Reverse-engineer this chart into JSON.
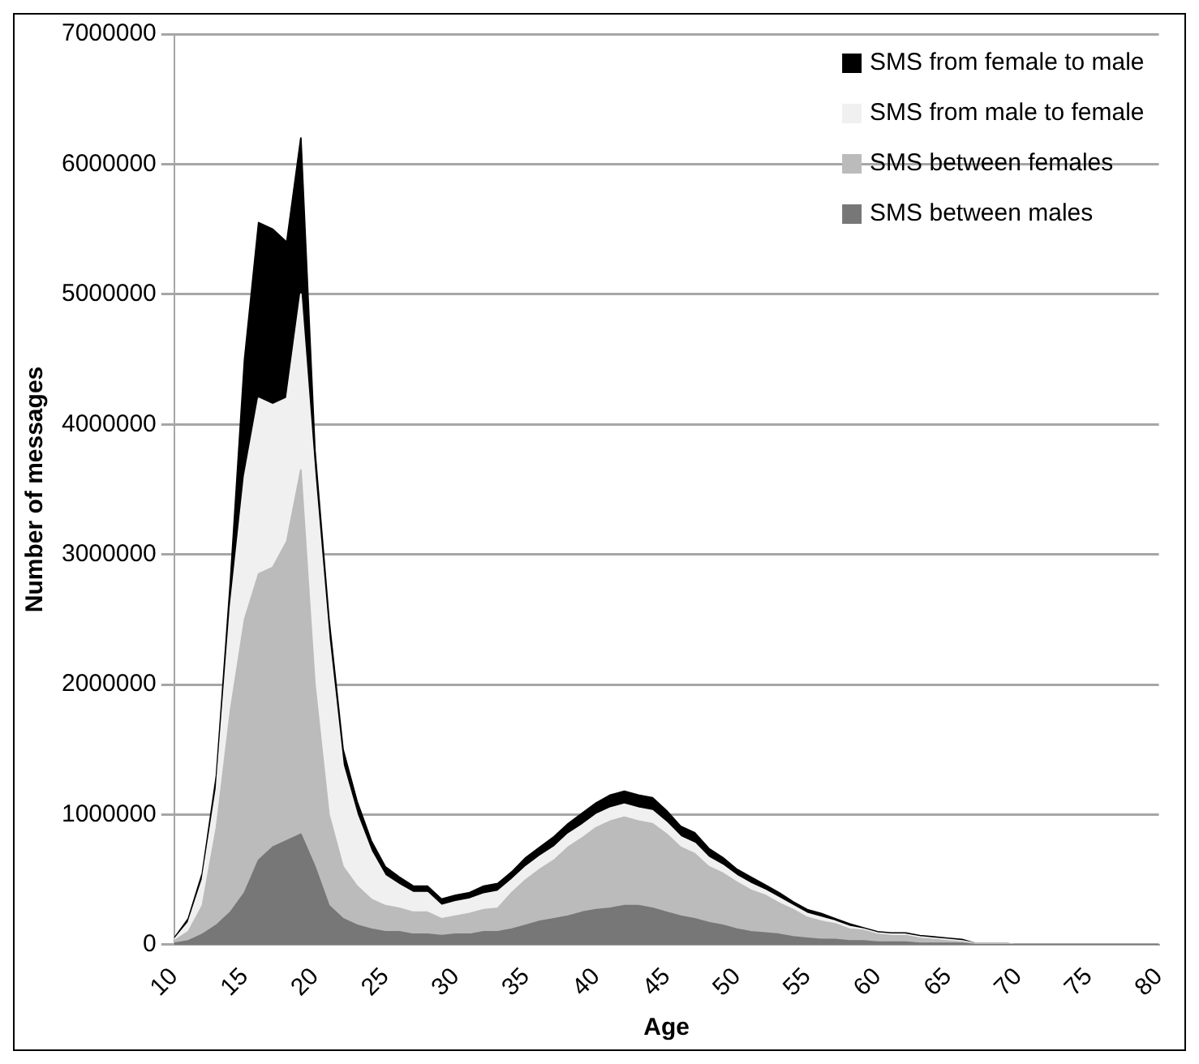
{
  "chart_data": {
    "type": "area",
    "stacked": true,
    "xlabel": "Age",
    "ylabel": "Number of messages",
    "x": [
      10,
      11,
      12,
      13,
      14,
      15,
      16,
      17,
      18,
      19,
      20,
      21,
      22,
      23,
      24,
      25,
      26,
      27,
      28,
      29,
      30,
      31,
      32,
      33,
      34,
      35,
      36,
      37,
      38,
      39,
      40,
      41,
      42,
      43,
      44,
      45,
      46,
      47,
      48,
      49,
      50,
      51,
      52,
      53,
      54,
      55,
      56,
      57,
      58,
      59,
      60,
      61,
      62,
      63,
      64,
      65,
      66,
      67,
      68,
      69,
      70,
      71,
      72,
      73,
      74,
      75,
      76,
      77,
      78,
      79,
      80
    ],
    "xlim": [
      10,
      80
    ],
    "xticks": [
      10,
      15,
      20,
      25,
      30,
      35,
      40,
      45,
      50,
      55,
      60,
      65,
      70,
      75,
      80
    ],
    "ylim": [
      0,
      7000000
    ],
    "yticks": [
      0,
      1000000,
      2000000,
      3000000,
      4000000,
      5000000,
      6000000,
      7000000
    ],
    "grid": "y",
    "legend": "top right",
    "series": [
      {
        "name": "SMS between males",
        "color": "#777777",
        "values": [
          10000,
          30000,
          80000,
          150000,
          250000,
          400000,
          650000,
          750000,
          800000,
          850000,
          600000,
          300000,
          200000,
          150000,
          120000,
          100000,
          100000,
          80000,
          80000,
          70000,
          80000,
          80000,
          100000,
          100000,
          120000,
          150000,
          180000,
          200000,
          220000,
          250000,
          270000,
          280000,
          300000,
          300000,
          280000,
          250000,
          220000,
          200000,
          170000,
          150000,
          120000,
          100000,
          90000,
          80000,
          60000,
          50000,
          40000,
          40000,
          30000,
          30000,
          20000,
          20000,
          20000,
          10000,
          10000,
          10000,
          10000,
          0,
          0,
          0,
          0,
          0,
          0,
          0,
          0,
          0,
          0,
          0,
          0,
          0,
          0
        ]
      },
      {
        "name": "SMS between females",
        "color": "#bbbbbb",
        "values": [
          20000,
          70000,
          220000,
          750000,
          1550000,
          2100000,
          2200000,
          2150000,
          2300000,
          2800000,
          1400000,
          700000,
          400000,
          300000,
          230000,
          200000,
          180000,
          170000,
          170000,
          130000,
          140000,
          160000,
          170000,
          180000,
          280000,
          350000,
          400000,
          450000,
          530000,
          570000,
          630000,
          670000,
          680000,
          650000,
          650000,
          600000,
          530000,
          500000,
          430000,
          400000,
          360000,
          320000,
          290000,
          240000,
          210000,
          160000,
          140000,
          120000,
          90000,
          80000,
          60000,
          50000,
          50000,
          40000,
          30000,
          20000,
          10000,
          10000,
          10000,
          10000,
          0,
          0,
          0,
          0,
          0,
          0,
          0,
          0,
          0,
          0,
          0
        ]
      },
      {
        "name": "SMS from male to female",
        "color": "#f0f0f0",
        "values": [
          10000,
          70000,
          200000,
          300000,
          800000,
          1100000,
          1350000,
          1250000,
          1100000,
          1350000,
          1600000,
          1350000,
          780000,
          550000,
          370000,
          230000,
          180000,
          150000,
          150000,
          100000,
          110000,
          110000,
          120000,
          130000,
          100000,
          100000,
          100000,
          100000,
          100000,
          100000,
          100000,
          100000,
          100000,
          100000,
          100000,
          90000,
          80000,
          80000,
          70000,
          60000,
          50000,
          50000,
          40000,
          40000,
          30000,
          30000,
          30000,
          20000,
          20000,
          10000,
          10000,
          10000,
          10000,
          10000,
          10000,
          10000,
          10000,
          0,
          0,
          0,
          0,
          0,
          0,
          0,
          0,
          0,
          0,
          0,
          0,
          0,
          0
        ]
      },
      {
        "name": "SMS from female to male",
        "color": "#000000",
        "values": [
          10000,
          30000,
          50000,
          100000,
          200000,
          900000,
          1350000,
          1350000,
          1200000,
          1200000,
          200000,
          150000,
          120000,
          100000,
          80000,
          70000,
          60000,
          50000,
          50000,
          50000,
          50000,
          50000,
          60000,
          60000,
          60000,
          70000,
          70000,
          80000,
          80000,
          90000,
          90000,
          100000,
          100000,
          100000,
          100000,
          90000,
          80000,
          80000,
          70000,
          60000,
          50000,
          50000,
          40000,
          40000,
          30000,
          30000,
          30000,
          20000,
          20000,
          10000,
          10000,
          10000,
          10000,
          10000,
          10000,
          10000,
          10000,
          0,
          0,
          0,
          0,
          0,
          0,
          0,
          0,
          0,
          0,
          0,
          0,
          0,
          0
        ]
      }
    ]
  }
}
